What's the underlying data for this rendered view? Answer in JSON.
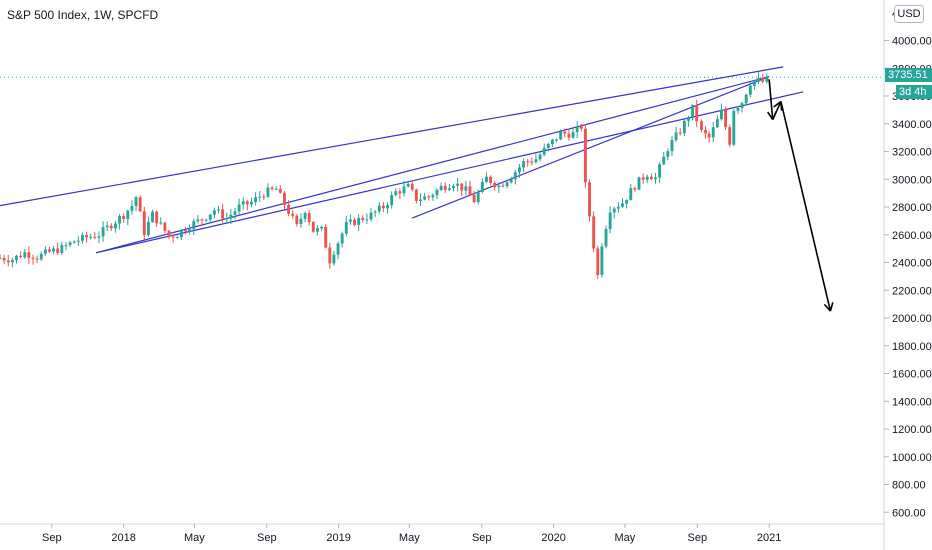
{
  "header": {
    "title": "S&P 500 Index, 1W, SPCFD"
  },
  "badges": {
    "currency": "USD",
    "last_price": "3735.51",
    "countdown": "3d 4h"
  },
  "colors": {
    "up": "#26a69a",
    "down": "#ef5350",
    "trendline": "#3333cc",
    "arrow": "#000000",
    "grid": "#f0f3fa",
    "axis_text": "#131722"
  },
  "chart_data": {
    "type": "candlestick",
    "title": "S&P 500 Index, 1W, SPCFD",
    "xlabel": "",
    "ylabel": "",
    "ylim": [
      500,
      4100
    ],
    "y_ticks": [
      4000,
      3800,
      3600,
      3400,
      3200,
      3000,
      2800,
      2600,
      2400,
      2200,
      2000,
      1800,
      1600,
      1400,
      1200,
      1000,
      800,
      600
    ],
    "y_tick_labels": [
      "4000.00",
      "3800.00",
      "3600.00",
      "3400.00",
      "3200.00",
      "3000.00",
      "2800.00",
      "2600.00",
      "2400.00",
      "2200.00",
      "2000.00",
      "1800.00",
      "1600.00",
      "1400.00",
      "1200.00",
      "1000.00",
      "800.00",
      "600.00"
    ],
    "y_tick_top_visible": "4",
    "x_ticks": [
      {
        "label": "Sep",
        "date": "2017-09-01"
      },
      {
        "label": "2018",
        "date": "2018-01-01"
      },
      {
        "label": "May",
        "date": "2018-05-01"
      },
      {
        "label": "Sep",
        "date": "2018-09-01"
      },
      {
        "label": "2019",
        "date": "2019-01-01"
      },
      {
        "label": "May",
        "date": "2019-05-01"
      },
      {
        "label": "Sep",
        "date": "2019-09-01"
      },
      {
        "label": "2020",
        "date": "2020-01-01"
      },
      {
        "label": "May",
        "date": "2020-05-01"
      },
      {
        "label": "Sep",
        "date": "2020-09-01"
      },
      {
        "label": "2021",
        "date": "2021-01-01"
      }
    ],
    "x_range": [
      "2017-06-05",
      "2021-07-15"
    ],
    "last_price": 3735.51,
    "weekly_close": [
      [
        "2017-06-05",
        2433
      ],
      [
        "2017-06-26",
        2423
      ],
      [
        "2017-07-17",
        2470
      ],
      [
        "2017-08-07",
        2441
      ],
      [
        "2017-08-28",
        2476
      ],
      [
        "2017-09-18",
        2502
      ],
      [
        "2017-10-09",
        2553
      ],
      [
        "2017-10-30",
        2581
      ],
      [
        "2017-11-20",
        2602
      ],
      [
        "2017-12-11",
        2675
      ],
      [
        "2018-01-01",
        2743
      ],
      [
        "2018-01-15",
        2810
      ],
      [
        "2018-01-22",
        2872
      ],
      [
        "2018-02-05",
        2619
      ],
      [
        "2018-02-19",
        2747
      ],
      [
        "2018-03-19",
        2588
      ],
      [
        "2018-04-02",
        2604
      ],
      [
        "2018-04-23",
        2669
      ],
      [
        "2018-05-14",
        2712
      ],
      [
        "2018-06-04",
        2779
      ],
      [
        "2018-06-25",
        2718
      ],
      [
        "2018-07-16",
        2801
      ],
      [
        "2018-08-06",
        2833
      ],
      [
        "2018-08-27",
        2901
      ],
      [
        "2018-09-17",
        2929
      ],
      [
        "2018-10-08",
        2767
      ],
      [
        "2018-10-22",
        2658
      ],
      [
        "2018-11-05",
        2781
      ],
      [
        "2018-11-19",
        2632
      ],
      [
        "2018-12-03",
        2633
      ],
      [
        "2018-12-17",
        2416
      ],
      [
        "2018-12-24",
        2485
      ],
      [
        "2019-01-14",
        2670
      ],
      [
        "2019-02-04",
        2708
      ],
      [
        "2019-02-25",
        2743
      ],
      [
        "2019-03-18",
        2801
      ],
      [
        "2019-04-08",
        2907
      ],
      [
        "2019-04-29",
        2945
      ],
      [
        "2019-05-13",
        2859
      ],
      [
        "2019-06-03",
        2873
      ],
      [
        "2019-06-24",
        2942
      ],
      [
        "2019-07-15",
        2977
      ],
      [
        "2019-08-05",
        2919
      ],
      [
        "2019-08-19",
        2847
      ],
      [
        "2019-09-09",
        3007
      ],
      [
        "2019-09-30",
        2952
      ],
      [
        "2019-10-21",
        3023
      ],
      [
        "2019-11-11",
        3120
      ],
      [
        "2019-12-02",
        3146
      ],
      [
        "2019-12-23",
        3240
      ],
      [
        "2020-01-13",
        3330
      ],
      [
        "2020-02-03",
        3328
      ],
      [
        "2020-02-17",
        3380
      ],
      [
        "2020-02-24",
        2954
      ],
      [
        "2020-03-16",
        2305
      ],
      [
        "2020-03-23",
        2541
      ],
      [
        "2020-04-06",
        2790
      ],
      [
        "2020-04-27",
        2831
      ],
      [
        "2020-05-18",
        2955
      ],
      [
        "2020-06-08",
        3041
      ],
      [
        "2020-06-22",
        3009
      ],
      [
        "2020-07-13",
        3225
      ],
      [
        "2020-08-03",
        3351
      ],
      [
        "2020-08-24",
        3508
      ],
      [
        "2020-09-08",
        3340
      ],
      [
        "2020-09-21",
        3298
      ],
      [
        "2020-10-12",
        3484
      ],
      [
        "2020-10-26",
        3270
      ],
      [
        "2020-11-02",
        3509
      ],
      [
        "2020-11-16",
        3558
      ],
      [
        "2020-11-30",
        3699
      ],
      [
        "2020-12-14",
        3709
      ],
      [
        "2020-12-21",
        3703
      ],
      [
        "2020-12-28",
        3735.51
      ]
    ],
    "trendlines": [
      {
        "from": [
          "2017-06-05",
          2810
        ],
        "to": [
          "2021-01-25",
          3810
        ]
      },
      {
        "from": [
          "2017-11-15",
          2470
        ],
        "to": [
          "2021-01-01",
          3740
        ]
      },
      {
        "from": [
          "2019-05-06",
          2720
        ],
        "to": [
          "2021-01-01",
          3740
        ]
      },
      {
        "from": [
          "2017-11-15",
          2470
        ],
        "to": [
          "2021-02-28",
          3630
        ]
      }
    ],
    "projection_arrows": [
      {
        "from": [
          "2021-01-01",
          3720
        ],
        "to": [
          "2021-01-07",
          3430
        ]
      },
      {
        "from": [
          "2021-01-07",
          3430
        ],
        "to": [
          "2021-01-21",
          3560
        ]
      },
      {
        "from": [
          "2021-01-21",
          3560
        ],
        "to": [
          "2021-04-15",
          2050
        ]
      }
    ]
  }
}
